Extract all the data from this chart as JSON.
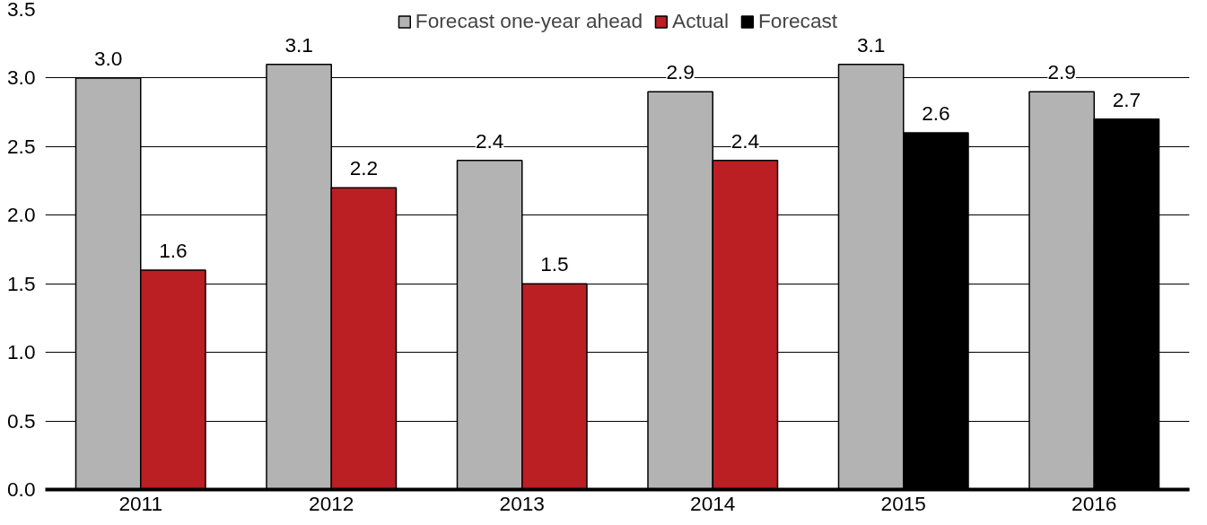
{
  "chart_data": {
    "type": "bar",
    "categories": [
      "2011",
      "2012",
      "2013",
      "2014",
      "2015",
      "2016"
    ],
    "series": [
      {
        "name": "Forecast one-year ahead",
        "color": "#b3b3b3",
        "values": [
          3.0,
          3.1,
          2.4,
          2.9,
          3.1,
          2.9
        ],
        "value_labels": [
          "3.0",
          "3.1",
          "2.4",
          "2.9",
          "3.1",
          "2.9"
        ]
      },
      {
        "name": "Actual",
        "color": "#bb1e23",
        "values": [
          1.6,
          2.2,
          1.5,
          2.4,
          null,
          null
        ],
        "value_labels": [
          "1.6",
          "2.2",
          "1.5",
          "2.4",
          null,
          null
        ]
      },
      {
        "name": "Forecast",
        "color": "#000000",
        "values": [
          null,
          null,
          null,
          null,
          2.6,
          2.7
        ],
        "value_labels": [
          null,
          null,
          null,
          null,
          "2.6",
          "2.7"
        ]
      }
    ],
    "ylim": [
      0,
      3.5
    ],
    "yticks": [
      {
        "value": 0,
        "label": "0.0"
      },
      {
        "value": 0.5,
        "label": "0.5"
      },
      {
        "value": 1,
        "label": "1.0"
      },
      {
        "value": 1.5,
        "label": "1.5"
      },
      {
        "value": 2,
        "label": "2.0"
      },
      {
        "value": 2.5,
        "label": "2.5"
      },
      {
        "value": 3,
        "label": "3.0"
      },
      {
        "value": 3.5,
        "label": "3.5"
      }
    ],
    "grid": "y",
    "legend": "top"
  }
}
